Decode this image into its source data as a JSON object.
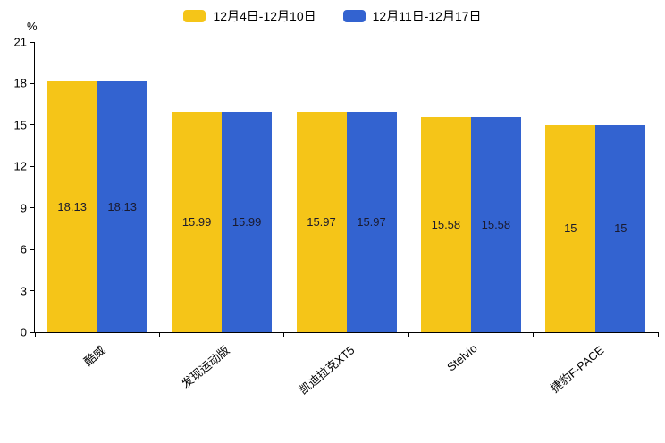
{
  "chart_data": {
    "type": "bar",
    "title": "",
    "xlabel": "",
    "ylabel": "%",
    "ylim": [
      0,
      21
    ],
    "yticks": [
      0,
      3,
      6,
      9,
      12,
      15,
      18,
      21
    ],
    "grid": false,
    "legend_position": "top",
    "value_label_color": "#1a1a2e",
    "axis_color": "#000000",
    "categories": [
      "酷威",
      "发现运动版",
      "凯迪拉克XT5",
      "Stelvio",
      "捷豹F-PACE"
    ],
    "series": [
      {
        "name": "12月4日-12月10日",
        "color": "#F5C518",
        "values": [
          18.13,
          15.99,
          15.97,
          15.58,
          15
        ],
        "labels": [
          "18.13",
          "15.99",
          "15.97",
          "15.58",
          "15"
        ]
      },
      {
        "name": "12月11日-12月17日",
        "color": "#3363D0",
        "values": [
          18.13,
          15.99,
          15.97,
          15.58,
          15
        ],
        "labels": [
          "18.13",
          "15.99",
          "15.97",
          "15.58",
          "15"
        ]
      }
    ]
  }
}
